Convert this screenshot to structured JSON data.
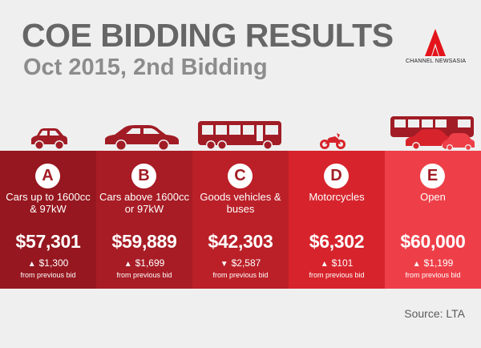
{
  "header": {
    "title": "COE BIDDING RESULTS",
    "subtitle": "Oct 2015, 2nd Bidding"
  },
  "logo": {
    "text": "CHANNEL NEWSASIA",
    "icon": "channel-newsasia-logo"
  },
  "categories": [
    {
      "letter": "A",
      "description": "Cars up to 1600cc & 97kW",
      "price": "$57,301",
      "direction": "up",
      "change": "$1,300",
      "note": "from previous bid",
      "color": "#96171f",
      "icon": "small-car-icon"
    },
    {
      "letter": "B",
      "description": "Cars above 1600cc or 97kW",
      "price": "$59,889",
      "direction": "up",
      "change": "$1,699",
      "note": "from previous bid",
      "color": "#a81c25",
      "icon": "sedan-car-icon"
    },
    {
      "letter": "C",
      "description": "Goods vehicles & buses",
      "price": "$42,303",
      "direction": "down",
      "change": "$2,587",
      "note": "from previous bid",
      "color": "#bb2028",
      "icon": "bus-icon"
    },
    {
      "letter": "D",
      "description": "Motorcycles",
      "price": "$6,302",
      "direction": "up",
      "change": "$101",
      "note": "from previous bid",
      "color": "#d7242c",
      "icon": "motorcycle-icon"
    },
    {
      "letter": "E",
      "description": "Open",
      "price": "$60,000",
      "direction": "up",
      "change": "$1,199",
      "note": "from previous bid",
      "color": "#ee3f48",
      "icon": "mixed-vehicles-icon"
    }
  ],
  "footer": {
    "source": "Source: LTA"
  }
}
